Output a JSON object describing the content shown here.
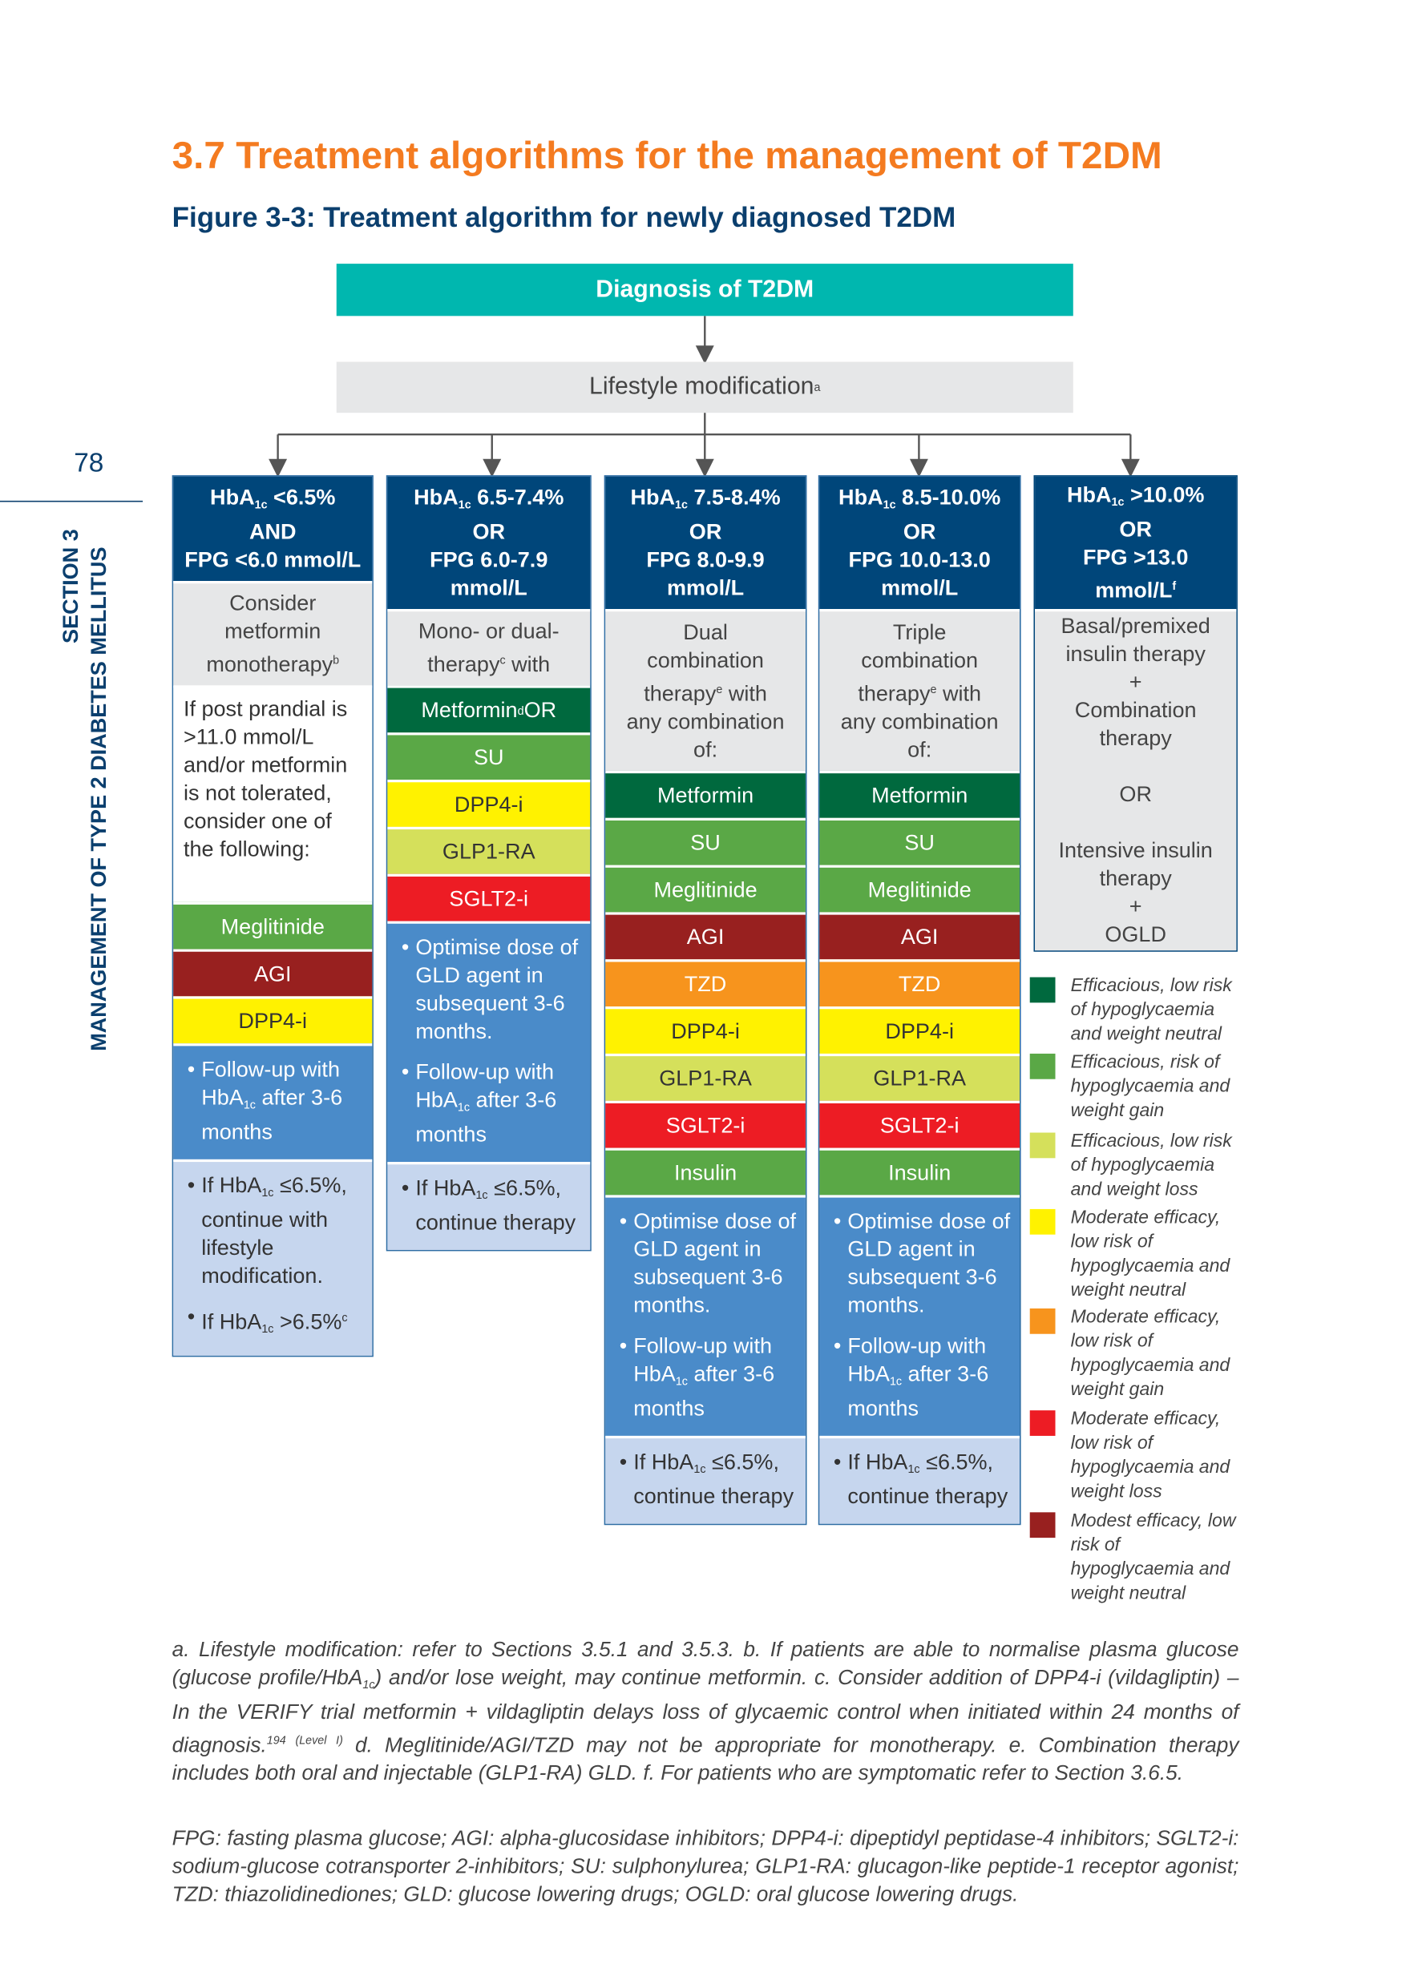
{
  "page_number": "78",
  "side_section": "SECTION 3",
  "side_title": "MANAGEMENT OF TYPE 2 DIABETES MELLITUS",
  "title": "3.7  Treatment algorithms for the management of T2DM",
  "subtitle": "Figure 3-3: Treatment algorithm for newly diagnosed T2DM",
  "diagnosis": "Diagnosis of T2DM",
  "lifestyle": {
    "text": "Lifestyle modification",
    "sup": "a"
  },
  "colors": {
    "dark_green": "#00693E",
    "green": "#5AA846",
    "lime": "#D5E05B",
    "yellow": "#FFF200",
    "orange": "#F7941D",
    "red": "#ED1C24",
    "dark_red": "#98201F",
    "navy": "#00467A",
    "teal": "#00B7AF",
    "title_orange": "#F47B20"
  },
  "columns": [
    {
      "header": [
        [
          {
            "t": "HbA"
          },
          {
            "sub": "1c"
          },
          {
            "t": " <6.5%"
          }
        ],
        [
          {
            "t": "AND"
          }
        ],
        [
          {
            "t": "FPG <6.0 mmol/L"
          }
        ]
      ],
      "gray": [
        [
          {
            "t": "Consider"
          }
        ],
        [
          {
            "t": "metformin"
          }
        ],
        [
          {
            "t": "monotherapy"
          },
          {
            "sup": "b"
          }
        ]
      ],
      "white": "If post prandial is >11.0 mmol/L and/or metformin is not tolerated, consider one of the following:",
      "drugs": [
        {
          "name": [
            {
              "t": "Meglitinide"
            }
          ],
          "color": "green"
        },
        {
          "name": [
            {
              "t": "AGI"
            }
          ],
          "color": "dark_red"
        },
        {
          "name": [
            {
              "t": "DPP4-i"
            }
          ],
          "color": "yellow"
        }
      ],
      "blue": [
        [
          {
            "t": "Follow-up with HbA"
          },
          {
            "sub": "1c"
          },
          {
            "t": " after 3-6 months"
          }
        ]
      ],
      "light": [
        [
          {
            "t": "If HbA"
          },
          {
            "sub": "1c"
          },
          {
            "t": " ≤6.5%, continue with lifestyle modification."
          }
        ],
        [
          {
            "t": "If HbA"
          },
          {
            "sub": "1c"
          },
          {
            "t": " >6.5%"
          },
          {
            "sup": "c"
          }
        ]
      ]
    },
    {
      "header": [
        [
          {
            "t": "HbA"
          },
          {
            "sub": "1c"
          },
          {
            "t": " 6.5-7.4%"
          }
        ],
        [
          {
            "t": "OR"
          }
        ],
        [
          {
            "t": "FPG 6.0-7.9"
          }
        ],
        [
          {
            "t": "mmol/L"
          }
        ]
      ],
      "gray": [
        [
          {
            "t": "Mono- or dual-"
          }
        ],
        [
          {
            "t": "therapy"
          },
          {
            "sup": "c"
          },
          {
            "t": " with"
          }
        ]
      ],
      "drugs": [
        {
          "name": [
            {
              "t": "Metformin"
            },
            {
              "sup": "d"
            },
            {
              "t": " OR"
            }
          ],
          "color": "dark_green"
        },
        {
          "name": [
            {
              "t": "SU"
            }
          ],
          "color": "green"
        },
        {
          "name": [
            {
              "t": "DPP4-i"
            }
          ],
          "color": "yellow"
        },
        {
          "name": [
            {
              "t": "GLP1-RA"
            }
          ],
          "color": "lime"
        },
        {
          "name": [
            {
              "t": "SGLT2-i"
            }
          ],
          "color": "red"
        }
      ],
      "blue": [
        [
          {
            "t": "Optimise dose of GLD agent in subsequent 3-6 months."
          }
        ],
        [
          {
            "t": "Follow-up with HbA"
          },
          {
            "sub": "1c"
          },
          {
            "t": " after 3-6 months"
          }
        ]
      ],
      "light": [
        [
          {
            "t": "If HbA"
          },
          {
            "sub": "1c"
          },
          {
            "t": " ≤6.5%, continue therapy"
          }
        ]
      ]
    },
    {
      "header": [
        [
          {
            "t": "HbA"
          },
          {
            "sub": "1c"
          },
          {
            "t": " 7.5-8.4%"
          }
        ],
        [
          {
            "t": "OR"
          }
        ],
        [
          {
            "t": "FPG 8.0-9.9"
          }
        ],
        [
          {
            "t": "mmol/L"
          }
        ]
      ],
      "gray": [
        [
          {
            "t": "Dual"
          }
        ],
        [
          {
            "t": "combination"
          }
        ],
        [
          {
            "t": "therapy"
          },
          {
            "sup": "e"
          },
          {
            "t": " with"
          }
        ],
        [
          {
            "t": "any combination"
          }
        ],
        [
          {
            "t": "of:"
          }
        ]
      ],
      "drugs": [
        {
          "name": [
            {
              "t": "Metformin"
            }
          ],
          "color": "dark_green"
        },
        {
          "name": [
            {
              "t": "SU"
            }
          ],
          "color": "green"
        },
        {
          "name": [
            {
              "t": "Meglitinide"
            }
          ],
          "color": "green"
        },
        {
          "name": [
            {
              "t": "AGI"
            }
          ],
          "color": "dark_red"
        },
        {
          "name": [
            {
              "t": "TZD"
            }
          ],
          "color": "orange"
        },
        {
          "name": [
            {
              "t": "DPP4-i"
            }
          ],
          "color": "yellow"
        },
        {
          "name": [
            {
              "t": "GLP1-RA"
            }
          ],
          "color": "lime"
        },
        {
          "name": [
            {
              "t": "SGLT2-i"
            }
          ],
          "color": "red"
        },
        {
          "name": [
            {
              "t": "Insulin"
            }
          ],
          "color": "green"
        }
      ],
      "blue": [
        [
          {
            "t": "Optimise dose of GLD agent in subsequent 3-6 months."
          }
        ],
        [
          {
            "t": "Follow-up with HbA"
          },
          {
            "sub": "1c"
          },
          {
            "t": " after 3-6 months"
          }
        ]
      ],
      "light": [
        [
          {
            "t": "If HbA"
          },
          {
            "sub": "1c"
          },
          {
            "t": " ≤6.5%, continue therapy"
          }
        ]
      ]
    },
    {
      "header": [
        [
          {
            "t": "HbA"
          },
          {
            "sub": "1c"
          },
          {
            "t": " 8.5-10.0%"
          }
        ],
        [
          {
            "t": "OR"
          }
        ],
        [
          {
            "t": "FPG 10.0-13.0"
          }
        ],
        [
          {
            "t": "mmol/L"
          }
        ]
      ],
      "gray": [
        [
          {
            "t": "Triple"
          }
        ],
        [
          {
            "t": "combination"
          }
        ],
        [
          {
            "t": "therapy"
          },
          {
            "sup": "e"
          },
          {
            "t": " with"
          }
        ],
        [
          {
            "t": "any combination"
          }
        ],
        [
          {
            "t": "of:"
          }
        ]
      ],
      "drugs": [
        {
          "name": [
            {
              "t": "Metformin"
            }
          ],
          "color": "dark_green"
        },
        {
          "name": [
            {
              "t": "SU"
            }
          ],
          "color": "green"
        },
        {
          "name": [
            {
              "t": "Meglitinide"
            }
          ],
          "color": "green"
        },
        {
          "name": [
            {
              "t": "AGI"
            }
          ],
          "color": "dark_red"
        },
        {
          "name": [
            {
              "t": "TZD"
            }
          ],
          "color": "orange"
        },
        {
          "name": [
            {
              "t": "DPP4-i"
            }
          ],
          "color": "yellow"
        },
        {
          "name": [
            {
              "t": "GLP1-RA"
            }
          ],
          "color": "lime"
        },
        {
          "name": [
            {
              "t": "SGLT2-i"
            }
          ],
          "color": "red"
        },
        {
          "name": [
            {
              "t": "Insulin"
            }
          ],
          "color": "green"
        }
      ],
      "blue": [
        [
          {
            "t": "Optimise dose of GLD agent in subsequent 3-6 months."
          }
        ],
        [
          {
            "t": "Follow-up with HbA"
          },
          {
            "sub": "1c"
          },
          {
            "t": " after 3-6 months"
          }
        ]
      ],
      "light": [
        [
          {
            "t": "If HbA"
          },
          {
            "sub": "1c"
          },
          {
            "t": " ≤6.5%, continue therapy"
          }
        ]
      ]
    },
    {
      "header": [
        [
          {
            "t": "HbA"
          },
          {
            "sub": "1c"
          },
          {
            "t": " >10.0%"
          }
        ],
        [
          {
            "t": "OR"
          }
        ],
        [
          {
            "t": "FPG >13.0"
          }
        ],
        [
          {
            "t": "mmol/L"
          },
          {
            "sup": "f"
          }
        ]
      ],
      "gray": [
        [
          {
            "t": "Basal/premixed"
          }
        ],
        [
          {
            "t": "insulin therapy"
          }
        ],
        [
          {
            "t": "+"
          }
        ],
        [
          {
            "t": "Combination"
          }
        ],
        [
          {
            "t": "therapy"
          }
        ],
        [
          {
            "t": " "
          }
        ],
        [
          {
            "t": "OR"
          }
        ],
        [
          {
            "t": " "
          }
        ],
        [
          {
            "t": "Intensive insulin"
          }
        ],
        [
          {
            "t": "therapy"
          }
        ],
        [
          {
            "t": "+"
          }
        ],
        [
          {
            "t": "OGLD"
          }
        ]
      ],
      "drugs": [],
      "blue": [],
      "light": []
    }
  ],
  "legend": [
    {
      "color": "dark_green",
      "text": "Efficacious, low risk of hypoglycaemia and weight neutral"
    },
    {
      "color": "green",
      "text": "Efficacious, risk of hypoglycaemia and weight gain"
    },
    {
      "color": "lime",
      "text": "Efficacious, low risk of hypoglycaemia and weight loss"
    },
    {
      "color": "yellow",
      "text": "Moderate efficacy, low risk of hypoglycaemia and weight neutral"
    },
    {
      "color": "orange",
      "text": "Moderate efficacy, low risk of hypoglycaemia and weight gain"
    },
    {
      "color": "red",
      "text": "Moderate efficacy, low risk of hypoglycaemia and weight loss"
    },
    {
      "color": "dark_red",
      "text": "Modest efficacy, low risk of hypoglycaemia and weight neutral"
    }
  ],
  "footnotes": [
    {
      "t": "a. Lifestyle modification: refer to Sections 3.5.1 and 3.5.3. b. If patients are able to normalise plasma glucose (glucose profile/HbA"
    },
    {
      "sub": "1c"
    },
    {
      "t": ") and/or lose weight, may continue metformin. c. Consider addition of DPP4-i (vildagliptin) – In the VERIFY trial metformin + vildagliptin delays loss of glycaemic control when initiated within 24 months of diagnosis."
    },
    {
      "sup": "194 (Level I)"
    },
    {
      "t": " d. Meglitinide/AGI/TZD may not be appropriate for monotherapy. e. Combination therapy includes both oral and injectable (GLP1-RA) GLD. f. For patients who are symptomatic refer to Section 3.6.5."
    }
  ],
  "abbreviations": "FPG: fasting plasma glucose; AGI: alpha-glucosidase inhibitors; DPP4-i: dipeptidyl peptidase-4 inhibitors; SGLT2-i: sodium-glucose cotransporter 2-inhibitors; SU: sulphonylurea; GLP1-RA: glucagon-like peptide-1 receptor agonist; TZD: thiazolidinediones; GLD: glucose lowering drugs; OGLD: oral glucose lowering drugs."
}
